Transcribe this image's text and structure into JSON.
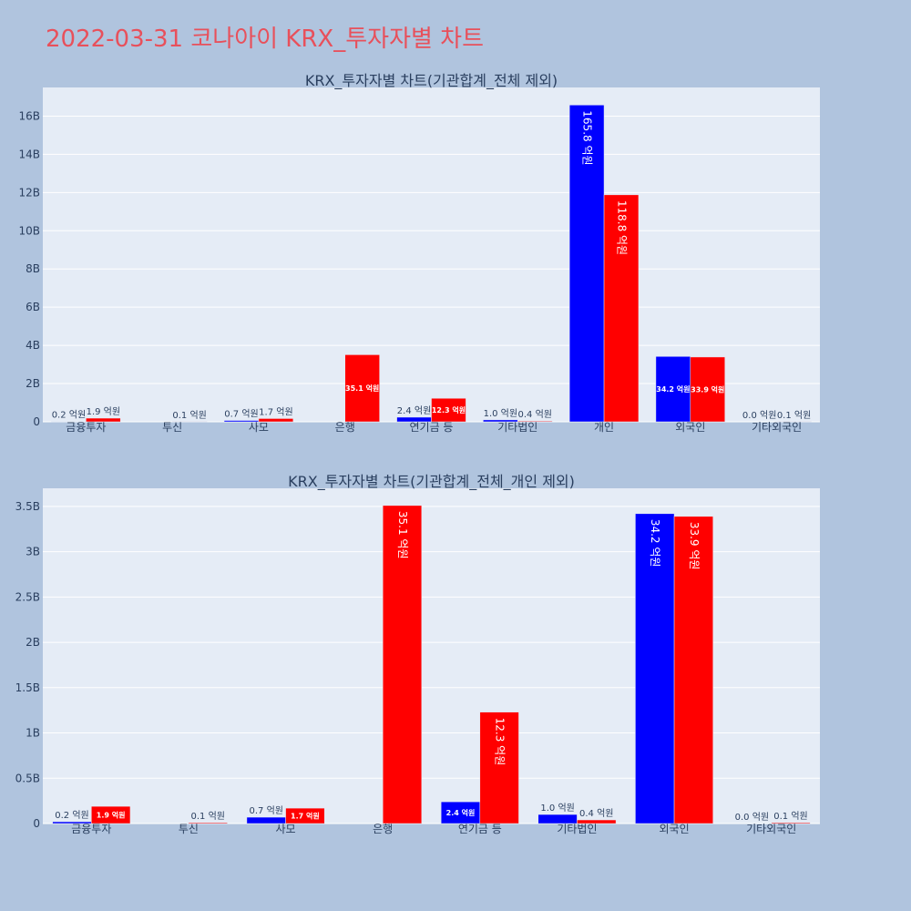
{
  "page_title": "2022-03-31 코나아이 KRX_투자자별 차트",
  "colors": {
    "buy": "#0000ff",
    "sell": "#ff0000",
    "plot_bg": "#e5ecf6",
    "page_bg": "#b0c4de",
    "title": "#e8505b"
  },
  "chart_data": [
    {
      "type": "bar",
      "title": "KRX_투자자별 차트(기관합계_전체 제외)",
      "categories": [
        "금융투자",
        "투신",
        "사모",
        "은행",
        "연기금 등",
        "기타법인",
        "개인",
        "외국인",
        "기타외국인"
      ],
      "series": [
        {
          "values": [
            20000000,
            0,
            70000000,
            0,
            240000000,
            100000000,
            16580000000,
            3420000000,
            0
          ],
          "labels": [
            "0.2 억원",
            "",
            "0.7 억원",
            "",
            "2.4 억원",
            "1.0 억원",
            "165.8 억원",
            "34.2 억원",
            "0.0 억원"
          ]
        },
        {
          "values": [
            190000000,
            10000000,
            170000000,
            3510000000,
            1230000000,
            40000000,
            11880000000,
            3390000000,
            10000000
          ],
          "labels": [
            "1.9 억원",
            "0.1 억원",
            "1.7 억원",
            "35.1 억원",
            "12.3 억원",
            "0.4 억원",
            "118.8 억원",
            "33.9 억원",
            "0.1 억원"
          ]
        }
      ],
      "ylim": [
        0,
        17500000000
      ],
      "yticks": [
        0,
        2000000000,
        4000000000,
        6000000000,
        8000000000,
        10000000000,
        12000000000,
        14000000000,
        16000000000
      ],
      "ytick_labels": [
        "0",
        "2B",
        "4B",
        "6B",
        "8B",
        "10B",
        "12B",
        "14B",
        "16B"
      ],
      "grid": true
    },
    {
      "type": "bar",
      "title": "KRX_투자자별 차트(기관합계_전체_개인 제외)",
      "categories": [
        "금융투자",
        "투신",
        "사모",
        "은행",
        "연기금 등",
        "기타법인",
        "외국인",
        "기타외국인"
      ],
      "series": [
        {
          "values": [
            20000000,
            0,
            70000000,
            0,
            240000000,
            100000000,
            3420000000,
            0
          ],
          "labels": [
            "0.2 억원",
            "",
            "0.7 억원",
            "",
            "2.4 억원",
            "1.0 억원",
            "34.2 억원",
            "0.0 억원"
          ]
        },
        {
          "values": [
            190000000,
            10000000,
            170000000,
            3510000000,
            1230000000,
            40000000,
            3390000000,
            10000000
          ],
          "labels": [
            "1.9 억원",
            "0.1 억원",
            "1.7 억원",
            "35.1 억원",
            "12.3 억원",
            "0.4 억원",
            "33.9 억원",
            "0.1 억원"
          ]
        }
      ],
      "ylim": [
        0,
        3700000000
      ],
      "yticks": [
        0,
        500000000,
        1000000000,
        1500000000,
        2000000000,
        2500000000,
        3000000000,
        3500000000
      ],
      "ytick_labels": [
        "0",
        "0.5B",
        "1B",
        "1.5B",
        "2B",
        "2.5B",
        "3B",
        "3.5B"
      ],
      "grid": true
    }
  ]
}
